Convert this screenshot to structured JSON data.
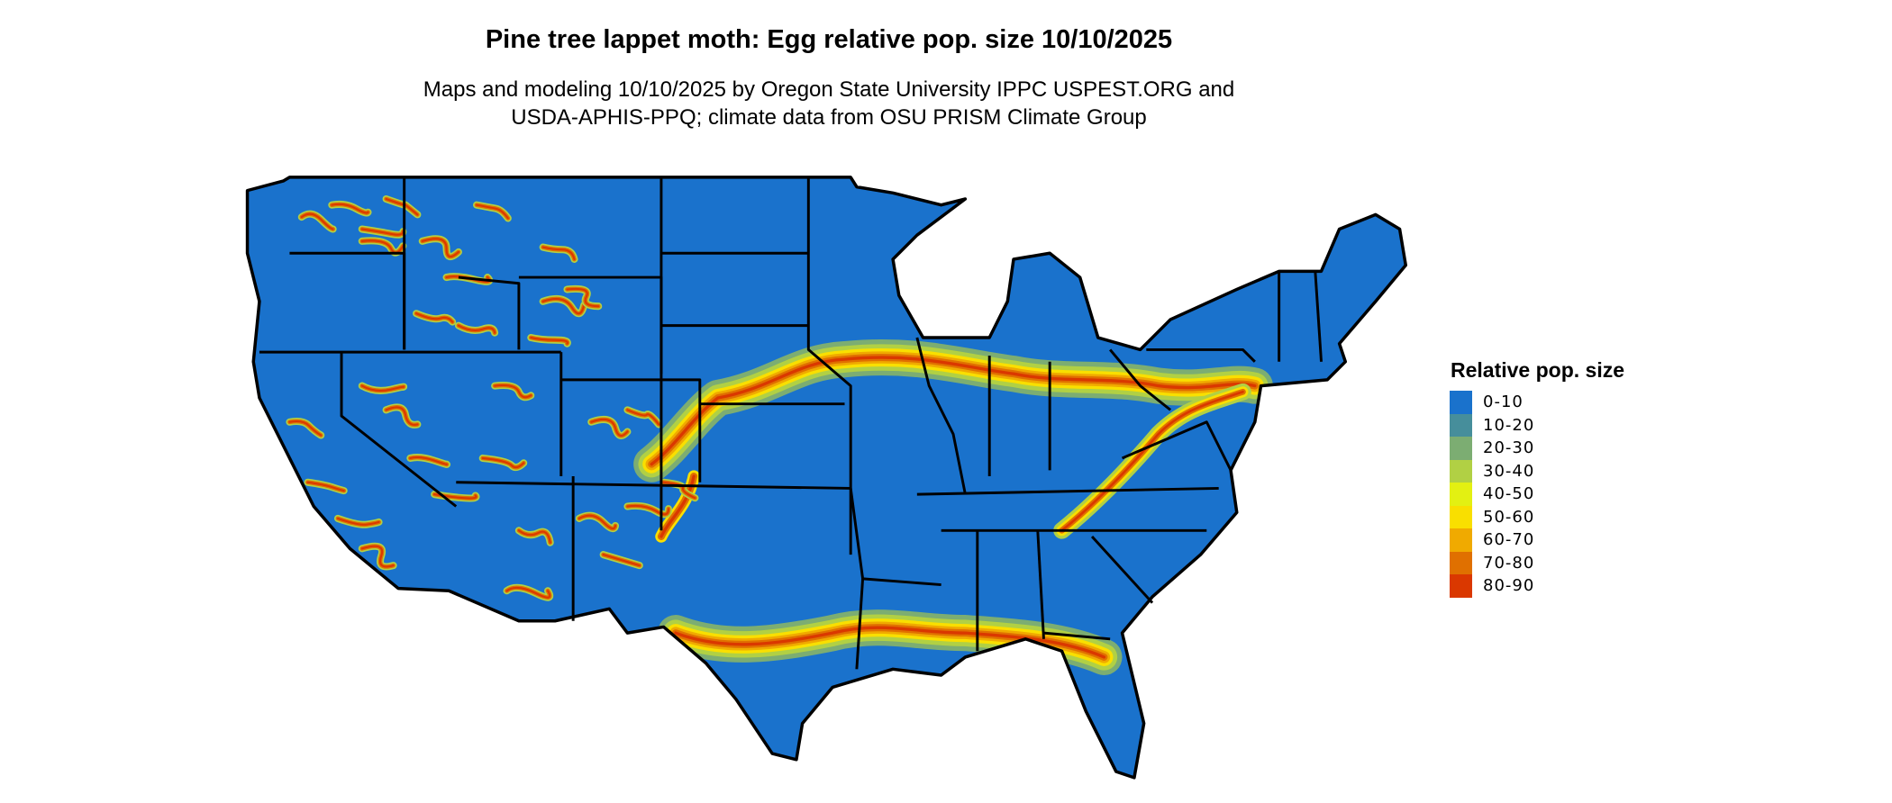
{
  "title": "Pine tree lappet moth: Egg relative pop. size 10/10/2025",
  "subtitle_lines": [
    "Maps and modeling 10/10/2025 by Oregon State University IPPC USPEST.ORG and",
    "USDA-APHIS-PPQ; climate data from OSU PRISM Climate Group"
  ],
  "legend": {
    "title": "Relative pop. size",
    "items": [
      {
        "label": "0-10",
        "color": "#1a72cc"
      },
      {
        "label": "10-20",
        "color": "#468e9b"
      },
      {
        "label": "20-30",
        "color": "#7cad72"
      },
      {
        "label": "30-40",
        "color": "#b1d044"
      },
      {
        "label": "40-50",
        "color": "#e3f012"
      },
      {
        "label": "50-60",
        "color": "#f9df00"
      },
      {
        "label": "60-70",
        "color": "#f0aa00"
      },
      {
        "label": "70-80",
        "color": "#e07000"
      },
      {
        "label": "80-90",
        "color": "#da3800"
      }
    ]
  },
  "map": {
    "region": "Contiguous United States",
    "base_color": "#1a72cc",
    "border_color": "#000000"
  }
}
